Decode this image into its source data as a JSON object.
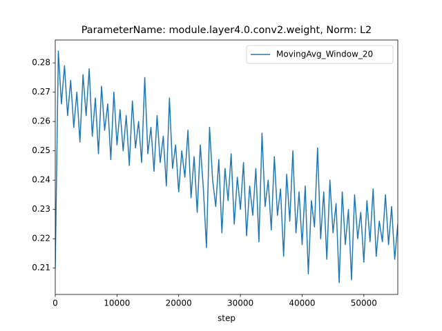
{
  "chart_data": {
    "type": "line",
    "title": "ParameterName: module.layer4.0.conv2.weight, Norm: L2",
    "x_label": "step",
    "legend": "upper right",
    "x": [
      0,
      500,
      1000,
      1500,
      2000,
      2500,
      3000,
      3500,
      4000,
      4500,
      5000,
      5500,
      6000,
      6500,
      7000,
      7500,
      8000,
      8500,
      9000,
      9500,
      10000,
      10500,
      11000,
      11500,
      12000,
      12500,
      13000,
      13500,
      14000,
      14500,
      15000,
      15500,
      16000,
      16500,
      17000,
      17500,
      18000,
      18500,
      19000,
      19500,
      20000,
      20500,
      21000,
      21500,
      22000,
      22500,
      23000,
      23500,
      24000,
      24500,
      25000,
      25500,
      26000,
      26500,
      27000,
      27500,
      28000,
      28500,
      29000,
      29500,
      30000,
      30500,
      31000,
      31500,
      32000,
      32500,
      33000,
      33500,
      34000,
      34500,
      35000,
      35500,
      36000,
      36500,
      37000,
      37500,
      38000,
      38500,
      39000,
      39500,
      40000,
      40500,
      41000,
      41500,
      42000,
      42500,
      43000,
      43500,
      44000,
      44500,
      45000,
      45500,
      46000,
      46500,
      47000,
      47500,
      48000,
      48500,
      49000,
      49500,
      50000,
      50500,
      51000,
      51500,
      52000,
      52500,
      53000,
      53500,
      54000,
      54500,
      55000,
      55500
    ],
    "series": [
      {
        "name": "MovingAvg_Window_20",
        "color": "#1f77b4",
        "values": [
          0.21,
          0.284,
          0.266,
          0.279,
          0.262,
          0.274,
          0.258,
          0.27,
          0.253,
          0.276,
          0.262,
          0.278,
          0.255,
          0.268,
          0.249,
          0.272,
          0.257,
          0.266,
          0.247,
          0.27,
          0.252,
          0.264,
          0.25,
          0.262,
          0.245,
          0.267,
          0.251,
          0.26,
          0.246,
          0.275,
          0.249,
          0.258,
          0.243,
          0.262,
          0.246,
          0.255,
          0.238,
          0.268,
          0.244,
          0.252,
          0.236,
          0.25,
          0.241,
          0.257,
          0.234,
          0.248,
          0.229,
          0.252,
          0.237,
          0.217,
          0.258,
          0.24,
          0.231,
          0.247,
          0.222,
          0.244,
          0.233,
          0.249,
          0.225,
          0.241,
          0.23,
          0.246,
          0.221,
          0.238,
          0.228,
          0.244,
          0.219,
          0.256,
          0.231,
          0.24,
          0.223,
          0.248,
          0.228,
          0.237,
          0.214,
          0.242,
          0.226,
          0.25,
          0.222,
          0.236,
          0.218,
          0.238,
          0.208,
          0.233,
          0.224,
          0.251,
          0.22,
          0.236,
          0.213,
          0.24,
          0.222,
          0.232,
          0.205,
          0.236,
          0.218,
          0.23,
          0.206,
          0.235,
          0.22,
          0.229,
          0.212,
          0.233,
          0.219,
          0.237,
          0.214,
          0.226,
          0.219,
          0.235,
          0.218,
          0.231,
          0.213,
          0.225
        ]
      }
    ],
    "xlim": [
      0,
      55500
    ],
    "ylim": [
      0.201,
      0.2878
    ],
    "xticks": [
      0,
      10000,
      20000,
      30000,
      40000,
      50000
    ],
    "yticks": [
      0.21,
      0.22,
      0.23,
      0.24,
      0.25,
      0.26,
      0.27,
      0.28
    ],
    "grid": false
  }
}
